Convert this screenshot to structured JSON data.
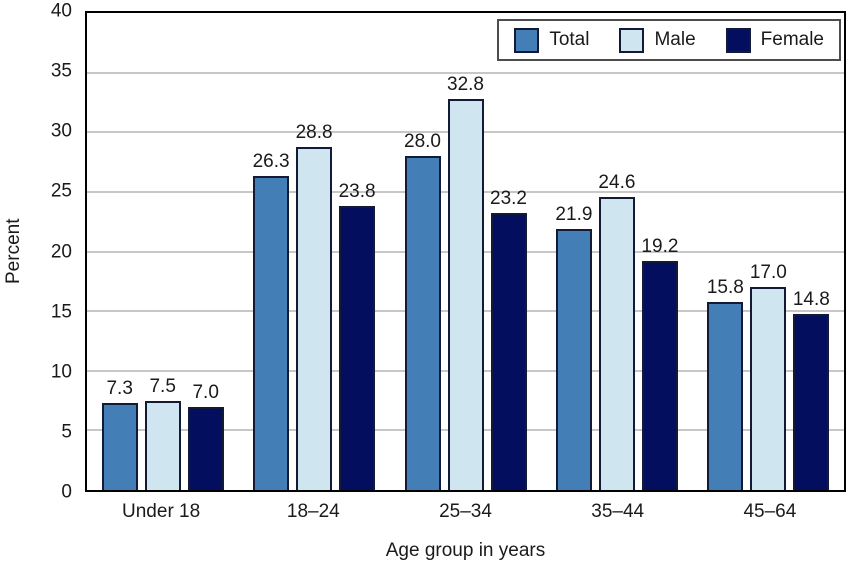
{
  "chart_data": {
    "type": "bar",
    "title": "",
    "xlabel": "Age group in years",
    "ylabel": "Percent",
    "ylim": [
      0,
      40
    ],
    "ytick_step": 5,
    "grid": "horizontal",
    "legend_position": "top-right",
    "categories": [
      "Under 18",
      "18–24",
      "25–34",
      "35–44",
      "45–64"
    ],
    "series": [
      {
        "name": "Total",
        "color": "#447eb7",
        "values": [
          7.3,
          26.3,
          28.0,
          21.9,
          15.8
        ]
      },
      {
        "name": "Male",
        "color": "#cfe5f0",
        "values": [
          7.5,
          28.8,
          32.8,
          24.6,
          17.0
        ]
      },
      {
        "name": "Female",
        "color": "#030f5e",
        "values": [
          7.0,
          23.8,
          23.2,
          19.2,
          14.8
        ]
      }
    ],
    "colors": {
      "bar_border": "#131a36",
      "grid": "#c7c7c7",
      "axis_border": "#000000",
      "legend_border": "#4d4d4d",
      "text": "#1a1a1a",
      "background": "#ffffff"
    }
  }
}
